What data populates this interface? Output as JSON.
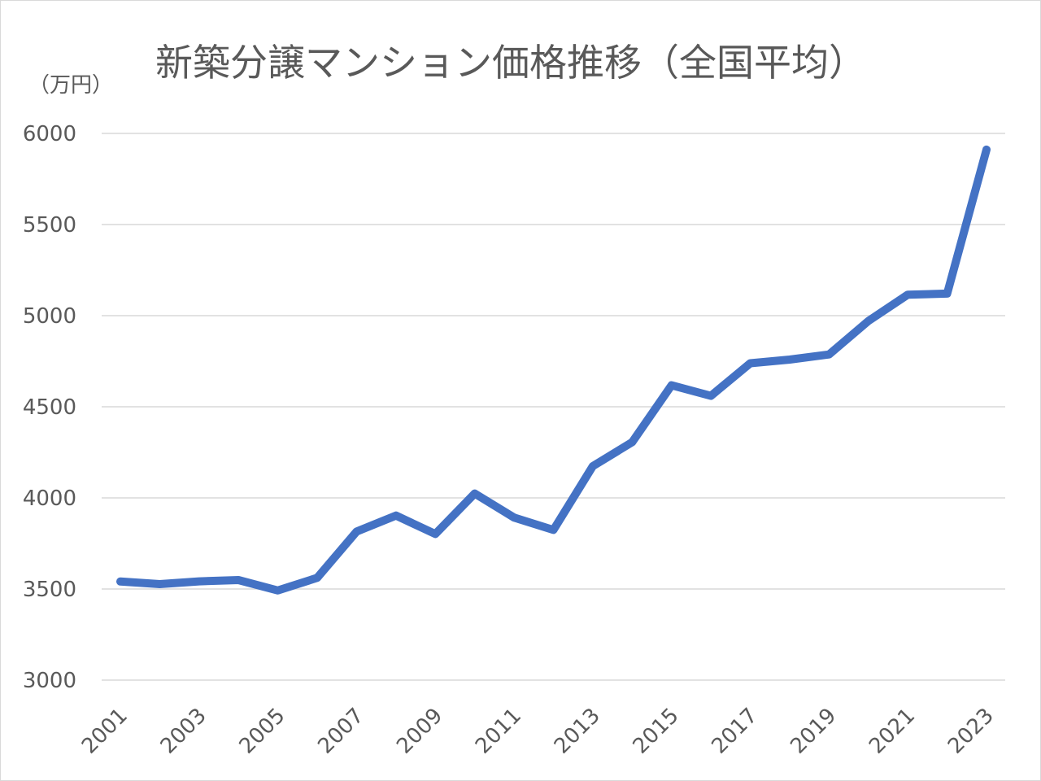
{
  "chart_data": {
    "type": "line",
    "title": "新築分譲マンション価格推移（全国平均）",
    "unit_label": "（万円）",
    "xlabel": "",
    "ylabel": "",
    "x": [
      2001,
      2002,
      2003,
      2004,
      2005,
      2006,
      2007,
      2008,
      2009,
      2010,
      2011,
      2012,
      2013,
      2014,
      2015,
      2016,
      2017,
      2018,
      2019,
      2020,
      2021,
      2022,
      2023
    ],
    "x_tick_labels": [
      "2001",
      "2003",
      "2005",
      "2007",
      "2009",
      "2011",
      "2013",
      "2015",
      "2017",
      "2019",
      "2021",
      "2023"
    ],
    "y_tick_labels": [
      "3000",
      "3500",
      "4000",
      "4500",
      "5000",
      "5500",
      "6000"
    ],
    "ylim": [
      3000,
      6000
    ],
    "grid": true,
    "legend": "none",
    "series": [
      {
        "values": [
          3541,
          3527,
          3542,
          3549,
          3492,
          3561,
          3815,
          3903,
          3802,
          4024,
          3892,
          3824,
          4174,
          4306,
          4618,
          4560,
          4739,
          4759,
          4787,
          4971,
          5115,
          5121,
          5911
        ],
        "color": "#4472C4"
      }
    ]
  }
}
